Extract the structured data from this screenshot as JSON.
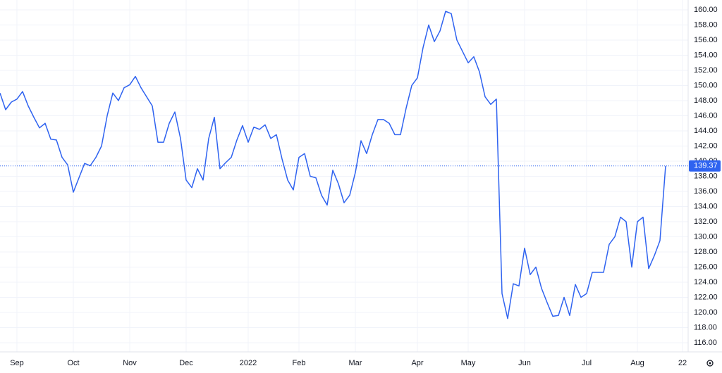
{
  "chart_data": {
    "type": "line",
    "categories": [
      null,
      null,
      null,
      "Sep",
      null,
      null,
      null,
      null,
      null,
      null,
      null,
      null,
      null,
      "Oct",
      null,
      null,
      null,
      null,
      null,
      null,
      null,
      null,
      null,
      "Nov",
      null,
      null,
      null,
      null,
      null,
      null,
      null,
      null,
      null,
      "Dec",
      null,
      null,
      null,
      null,
      null,
      null,
      null,
      null,
      null,
      null,
      "2022",
      null,
      null,
      null,
      null,
      null,
      null,
      null,
      null,
      "Feb",
      null,
      null,
      null,
      null,
      null,
      null,
      null,
      null,
      null,
      "Mar",
      null,
      null,
      null,
      null,
      null,
      null,
      null,
      null,
      null,
      null,
      "Apr",
      null,
      null,
      null,
      null,
      null,
      null,
      null,
      null,
      "May",
      null,
      null,
      null,
      null,
      null,
      null,
      null,
      null,
      null,
      "Jun",
      null,
      null,
      null,
      null,
      null,
      null,
      null,
      null,
      null,
      null,
      "Jul",
      null,
      null,
      null,
      null,
      null,
      null,
      null,
      null,
      "Aug",
      null,
      null,
      null,
      null,
      null,
      null,
      null,
      "22"
    ],
    "series": [
      {
        "color": "#2f63f0",
        "values": [
          149,
          146.8,
          147.8,
          148.2,
          149.2,
          147.3,
          145.8,
          144.4,
          145,
          142.9,
          142.8,
          140.5,
          139.5,
          135.9,
          137.8,
          139.7,
          139.4,
          140.5,
          142,
          146,
          149,
          148,
          149.7,
          150.1,
          151.2,
          149.7,
          148.5,
          147.3,
          142.5,
          142.5,
          145,
          146.5,
          143,
          137.5,
          136.5,
          139,
          137.5,
          143,
          145.8,
          139,
          139.8,
          140.5,
          142.8,
          144.7,
          142.5,
          144.5,
          144.2,
          144.8,
          143,
          143.5,
          140.3,
          137.5,
          136.2,
          140.5,
          141,
          138,
          137.8,
          135.5,
          134.2,
          138.8,
          137,
          134.5,
          135.5,
          138.5,
          142.7,
          141,
          143.5,
          145.5,
          145.5,
          145,
          143.5,
          143.5,
          147,
          150,
          151,
          155,
          158,
          155.8,
          157.2,
          159.8,
          159.5,
          156,
          154.5,
          153,
          153.8,
          151.8,
          148.5,
          147.5,
          148.2,
          122.5,
          119.2,
          123.8,
          123.5,
          128.5,
          125,
          126,
          123.2,
          121.3,
          119.5,
          119.6,
          122,
          119.6,
          123.7,
          122,
          122.5,
          125.3,
          125.3,
          125.3,
          129,
          130,
          132.6,
          132,
          126,
          132,
          132.6,
          125.8,
          127.5,
          129.5,
          139.37,
          null,
          null,
          null
        ]
      }
    ],
    "ylim": [
      114.79,
      161.3
    ],
    "yticks": [
      {
        "value": 116,
        "label": "116.00"
      },
      {
        "value": 118,
        "label": "118.00"
      },
      {
        "value": 120,
        "label": "120.00"
      },
      {
        "value": 122,
        "label": "122.00"
      },
      {
        "value": 124,
        "label": "124.00"
      },
      {
        "value": 126,
        "label": "126.00"
      },
      {
        "value": 128,
        "label": "128.00"
      },
      {
        "value": 130,
        "label": "130.00"
      },
      {
        "value": 132,
        "label": "132.00"
      },
      {
        "value": 134,
        "label": "134.00"
      },
      {
        "value": 136,
        "label": "136.00"
      },
      {
        "value": 138,
        "label": "138.00"
      },
      {
        "value": 140,
        "label": "140.00"
      },
      {
        "value": 142,
        "label": "142.00"
      },
      {
        "value": 144,
        "label": "144.00"
      },
      {
        "value": 146,
        "label": "146.00"
      },
      {
        "value": 148,
        "label": "148.00"
      },
      {
        "value": 150,
        "label": "150.00"
      },
      {
        "value": 152,
        "label": "152.00"
      },
      {
        "value": 154,
        "label": "154.00"
      },
      {
        "value": 156,
        "label": "156.00"
      },
      {
        "value": 158,
        "label": "158.00"
      },
      {
        "value": 160,
        "label": "160.00"
      }
    ],
    "grid": true
  }
}
